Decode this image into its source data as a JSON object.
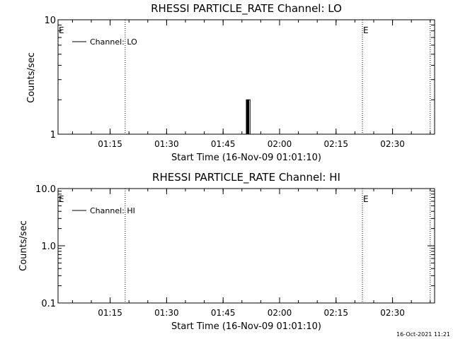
{
  "footer_timestamp": "16-Oct-2021 11:21",
  "chart_data": [
    {
      "type": "line",
      "title": "RHESSI PARTICLE_RATE Channel: LO",
      "xlabel": "Start Time (16-Nov-09 01:01:10)",
      "ylabel": "Counts/sec",
      "yscale": "log",
      "ylim": [
        1,
        10
      ],
      "xlim": [
        "01:01:10",
        "02:41:10"
      ],
      "x_ticks": [
        "01:15",
        "01:30",
        "01:45",
        "02:00",
        "02:15",
        "02:30"
      ],
      "y_ticks": [
        "1",
        "10"
      ],
      "legend": {
        "position": "top-left",
        "entries": [
          "Channel: LO"
        ]
      },
      "vertical_lines": [
        "01:19:00",
        "02:22:00",
        "02:40:00"
      ],
      "event_markers": [
        {
          "label": "E",
          "time": "01:01:10"
        },
        {
          "label": "E",
          "time": "02:22:00"
        }
      ],
      "series": [
        {
          "name": "Channel: LO",
          "x": [
            "01:51:00",
            "01:51:10",
            "01:51:20",
            "01:51:30",
            "01:51:40",
            "01:51:50",
            "01:52:00",
            "01:52:10"
          ],
          "values": [
            1,
            2,
            1,
            2,
            1,
            2,
            2,
            1
          ]
        }
      ]
    },
    {
      "type": "line",
      "title": "RHESSI PARTICLE_RATE Channel: HI",
      "xlabel": "Start Time (16-Nov-09 01:01:10)",
      "ylabel": "Counts/sec",
      "yscale": "log",
      "ylim": [
        0.1,
        10
      ],
      "xlim": [
        "01:01:10",
        "02:41:10"
      ],
      "x_ticks": [
        "01:15",
        "01:30",
        "01:45",
        "02:00",
        "02:15",
        "02:30"
      ],
      "y_ticks": [
        "0.1",
        "1.0",
        "10.0"
      ],
      "legend": {
        "position": "top-left",
        "entries": [
          "Channel: HI"
        ]
      },
      "vertical_lines": [
        "01:19:00",
        "02:22:00",
        "02:40:00"
      ],
      "event_markers": [
        {
          "label": "E",
          "time": "01:01:10"
        },
        {
          "label": "E",
          "time": "02:22:00"
        }
      ],
      "series": [
        {
          "name": "Channel: HI",
          "x": [],
          "values": []
        }
      ]
    }
  ]
}
